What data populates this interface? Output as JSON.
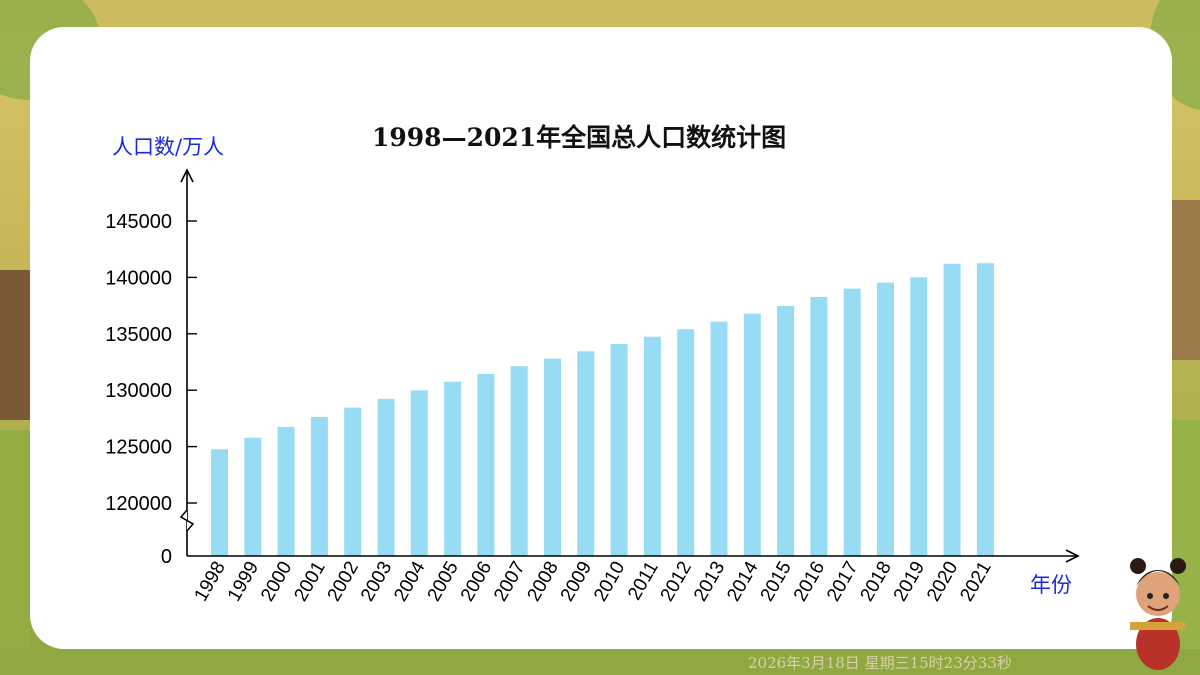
{
  "chart_data": {
    "type": "bar",
    "title": "1998—2021年全国总人口数统计图",
    "ylabel": "人口数/万人",
    "xlabel": "年份",
    "categories": [
      "1998",
      "1999",
      "2000",
      "2001",
      "2002",
      "2003",
      "2004",
      "2005",
      "2006",
      "2007",
      "2008",
      "2009",
      "2010",
      "2011",
      "2012",
      "2013",
      "2014",
      "2015",
      "2016",
      "2017",
      "2018",
      "2019",
      "2020",
      "2021"
    ],
    "values": [
      124761,
      125786,
      126743,
      127627,
      128453,
      129227,
      129988,
      130756,
      131448,
      132129,
      132802,
      133450,
      134091,
      134735,
      135404,
      136072,
      136782,
      137462,
      138271,
      139008,
      139538,
      140005,
      141212,
      141260
    ],
    "yticks": [
      0,
      120000,
      125000,
      130000,
      135000,
      140000,
      145000
    ],
    "ylim": [
      120000,
      145000
    ],
    "axis_break": true,
    "grid": false,
    "bar_color": "#97dcf4"
  },
  "timestamp": "2026年3月18日 星期三15时23分33秒"
}
